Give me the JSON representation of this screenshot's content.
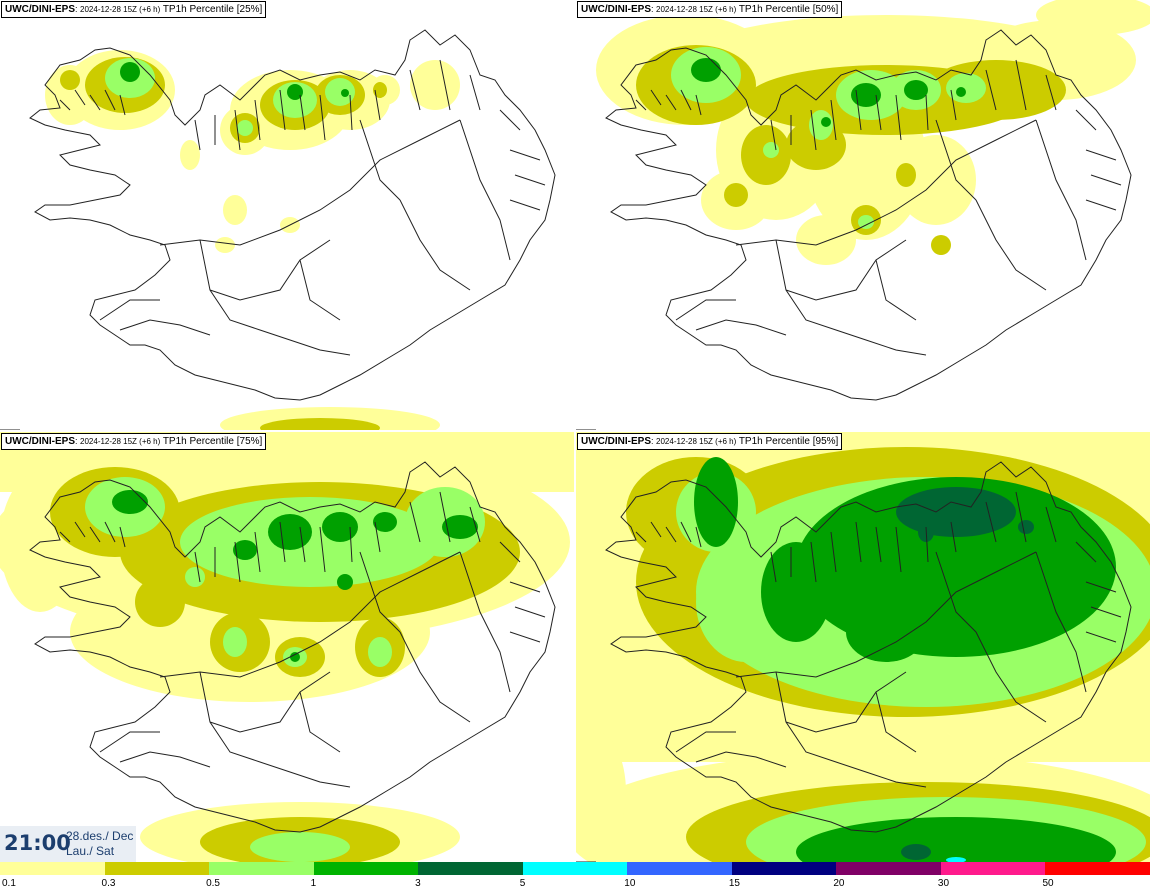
{
  "panels": [
    {
      "model": "UWC/DINI-EPS",
      "run": "2024-12-28 15Z (+6 h)",
      "field": "TP1h Percentile [25%]"
    },
    {
      "model": "UWC/DINI-EPS",
      "run": "2024-12-28 15Z (+6 h)",
      "field": "TP1h Percentile [50%]"
    },
    {
      "model": "UWC/DINI-EPS",
      "run": "2024-12-28 15Z (+6 h)",
      "field": "TP1h Percentile [75%]"
    },
    {
      "model": "UWC/DINI-EPS",
      "run": "2024-12-28 15Z (+6 h)",
      "field": "TP1h Percentile [95%]"
    }
  ],
  "valid_time": {
    "time": "21:00",
    "date": "28.des./ Dec",
    "day": "Lau./ Sat"
  },
  "colorbar": {
    "labels": [
      "0.1",
      "0.3",
      "0.5",
      "1",
      "3",
      "5",
      "10",
      "15",
      "20",
      "30",
      "50"
    ],
    "colors": [
      "#ffff99",
      "#cccc00",
      "#99ff66",
      "#00b300",
      "#006633",
      "#00ffff",
      "#3366ff",
      "#000080",
      "#800066",
      "#ff1a8c",
      "#ff0000"
    ]
  },
  "precip_colors": {
    "light": "#ffff99",
    "olive": "#cccc00",
    "lightgreen": "#99ff66",
    "green": "#00a000",
    "darkgreen": "#006633",
    "cyan": "#00ffff"
  }
}
